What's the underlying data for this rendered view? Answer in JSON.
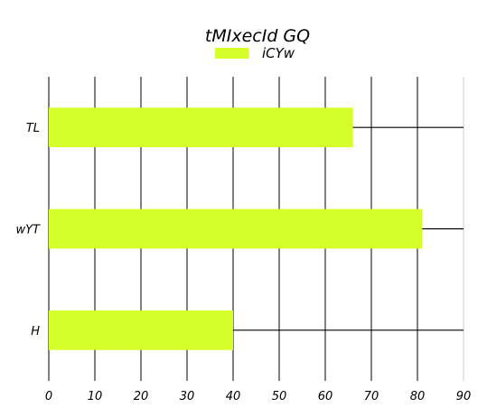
{
  "chart_data": {
    "type": "bar",
    "orientation": "horizontal",
    "title": "tMIxecId GQ",
    "categories": [
      "TL",
      "wYT",
      "H"
    ],
    "series": [
      {
        "name": "iCYw",
        "values": [
          66,
          81,
          40
        ],
        "color": "#d4ff2a"
      }
    ],
    "xlim": [
      0,
      90
    ],
    "xticks": [
      "0",
      "10",
      "20",
      "30",
      "40",
      "50",
      "60",
      "70",
      "80",
      "90"
    ],
    "grid": true,
    "legend_position": "top-center",
    "line_color": "#000000"
  }
}
